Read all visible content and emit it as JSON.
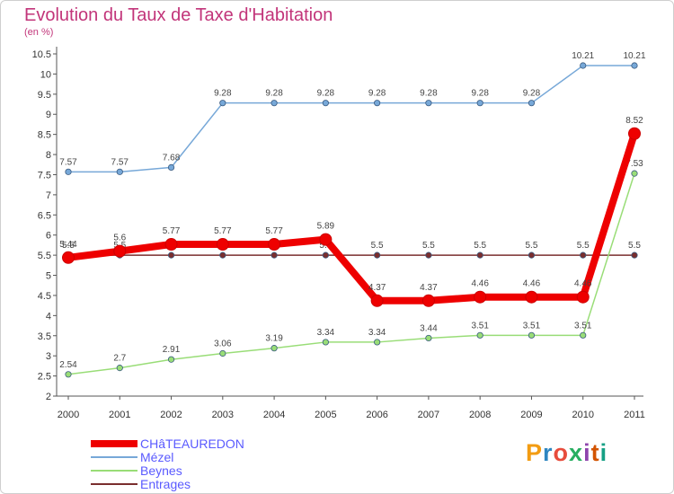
{
  "title": "Evolution du Taux de Taxe d'Habitation",
  "subtitle": "(en %)",
  "logo": {
    "text": "Proxiti",
    "colors": [
      "#f39c12",
      "#2e86c1",
      "#e74c3c",
      "#27ae60",
      "#8e44ad",
      "#d35400",
      "#16a085"
    ]
  },
  "chart_data": {
    "type": "line",
    "x": [
      "2000",
      "2001",
      "2002",
      "2003",
      "2004",
      "2005",
      "2006",
      "2007",
      "2008",
      "2009",
      "2010",
      "2011"
    ],
    "ylim": [
      2,
      10.5
    ],
    "yticks": [
      "2",
      "2.5",
      "3",
      "3.5",
      "4",
      "4.5",
      "5",
      "5.5",
      "6",
      "6.5",
      "7",
      "7.5",
      "8",
      "8.5",
      "9",
      "9.5",
      "10",
      "10.5"
    ],
    "grid": false,
    "legend": "bottom-left",
    "series": [
      {
        "name": "Entrages",
        "color": "#7a2e2e",
        "values": [
          5.5,
          5.5,
          5.5,
          5.5,
          5.5,
          5.5,
          5.5,
          5.5,
          5.5,
          5.5,
          5.5,
          5.5
        ],
        "labels": [
          "5.5",
          "5.5",
          "5.5",
          "5.5",
          "5.5",
          "5.5",
          "5.5",
          "5.5",
          "5.5",
          "5.5",
          "5.5",
          "5.5"
        ]
      },
      {
        "name": "Beynes",
        "color": "#99dd77",
        "values": [
          2.54,
          2.7,
          2.91,
          3.06,
          3.19,
          3.34,
          3.34,
          3.44,
          3.51,
          3.51,
          3.51,
          7.53
        ],
        "labels": [
          "2.54",
          "2.7",
          "2.91",
          "3.06",
          "3.19",
          "3.34",
          "3.34",
          "3.44",
          "3.51",
          "3.51",
          "3.51",
          "7.53"
        ]
      },
      {
        "name": "Mézel",
        "color": "#77a8d8",
        "values": [
          7.57,
          7.57,
          7.68,
          9.28,
          9.28,
          9.28,
          9.28,
          9.28,
          9.28,
          9.28,
          10.21,
          10.21
        ],
        "labels": [
          "7.57",
          "7.57",
          "7.68",
          "9.28",
          "9.28",
          "9.28",
          "9.28",
          "9.28",
          "9.28",
          "9.28",
          "10.21",
          "10.21"
        ]
      },
      {
        "name": "CHâTEAUREDON",
        "color": "#ee0000",
        "values": [
          5.44,
          5.6,
          5.77,
          5.77,
          5.77,
          5.89,
          4.37,
          4.37,
          4.46,
          4.46,
          4.46,
          8.52
        ],
        "labels": [
          "5.44",
          "5.6",
          "5.77",
          "5.77",
          "5.77",
          "5.89",
          "4.37",
          "4.37",
          "4.46",
          "4.46",
          "4.46",
          "8.52"
        ]
      }
    ],
    "legend_order": [
      "CHâTEAUREDON",
      "Mézel",
      "Beynes",
      "Entrages"
    ]
  }
}
